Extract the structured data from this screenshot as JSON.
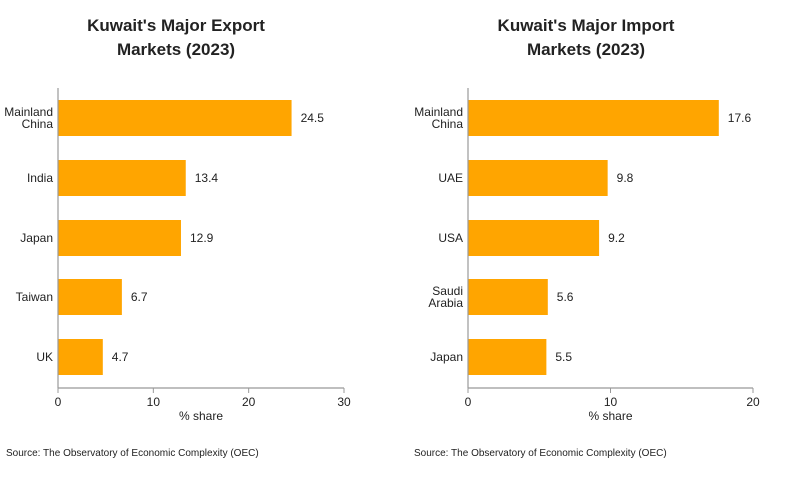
{
  "chart_data": [
    {
      "type": "bar",
      "orientation": "horizontal",
      "title": [
        "Kuwait's Major Export",
        "Markets (2023)"
      ],
      "categories": [
        [
          "Mainland",
          "China"
        ],
        [
          "India"
        ],
        [
          "Japan"
        ],
        [
          "Taiwan"
        ],
        [
          "UK"
        ]
      ],
      "values": [
        24.5,
        13.4,
        12.9,
        6.7,
        4.7
      ],
      "value_labels": [
        "24.5",
        "13.4",
        "12.9",
        "6.7",
        "4.7"
      ],
      "xlabel": "% share",
      "xlim": [
        0,
        30
      ],
      "xticks": [
        0,
        10,
        20,
        30
      ],
      "source": "Source: The Observatory of Economic Complexity (OEC)",
      "color": "#FFA500"
    },
    {
      "type": "bar",
      "orientation": "horizontal",
      "title": [
        "Kuwait's Major Import",
        "Markets (2023)"
      ],
      "categories": [
        [
          "Mainland",
          "China"
        ],
        [
          "UAE"
        ],
        [
          "USA"
        ],
        [
          "Saudi",
          "Arabia"
        ],
        [
          "Japan"
        ]
      ],
      "values": [
        17.6,
        9.8,
        9.2,
        5.6,
        5.5
      ],
      "value_labels": [
        "17.6",
        "9.8",
        "9.2",
        "5.6",
        "5.5"
      ],
      "xlabel": "% share",
      "xlim": [
        0,
        20
      ],
      "xticks": [
        0,
        10,
        20
      ],
      "source": "Source: The Observatory of Economic Complexity (OEC)",
      "color": "#FFA500"
    }
  ]
}
